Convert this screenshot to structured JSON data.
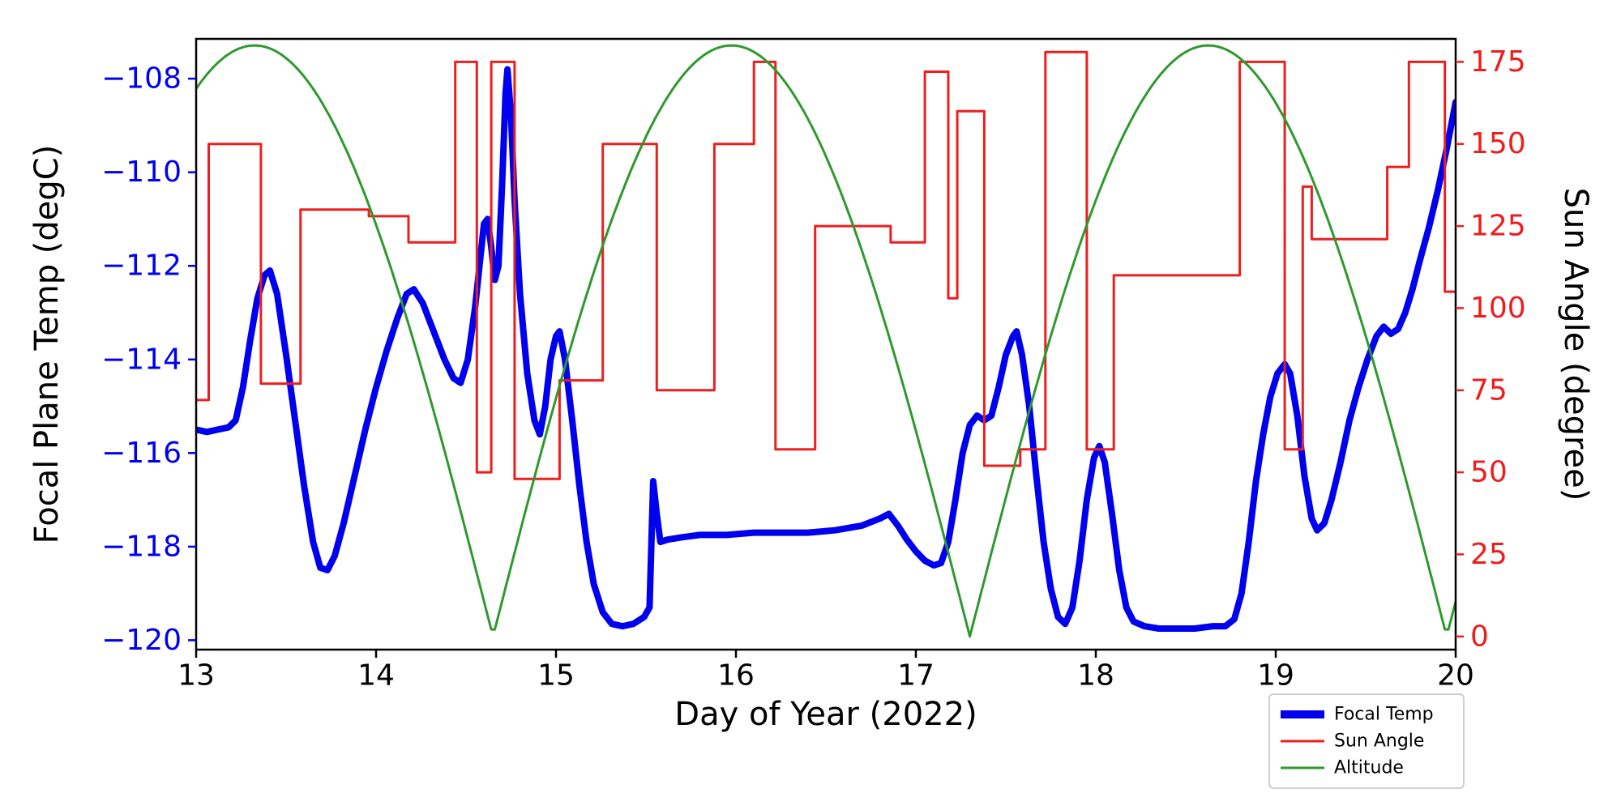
{
  "chart_data": {
    "type": "line",
    "title": "",
    "xlabel": "Day of Year (2022)",
    "x": {
      "lim": [
        13,
        20
      ],
      "ticks": [
        13,
        14,
        15,
        16,
        17,
        18,
        19,
        20
      ]
    },
    "y_left": {
      "label": "Focal Plane Temp (degC)",
      "color": "#0000ee",
      "lim": [
        -120.2,
        -107.15
      ],
      "ticks": [
        -108,
        -110,
        -112,
        -114,
        -116,
        -118,
        -120
      ]
    },
    "y_right": {
      "label": "Sun Angle (degree)",
      "color": "#ee1e1e",
      "lim": [
        -4,
        182
      ],
      "ticks": [
        0,
        25,
        50,
        75,
        100,
        125,
        150,
        175
      ]
    },
    "grid": false,
    "legend": {
      "position": "lower-right-outside",
      "entries": [
        {
          "label": "Focal Temp",
          "color": "#0000ee",
          "sample_width": 10
        },
        {
          "label": "Sun Angle",
          "color": "#ee1e1e",
          "sample_width": 3
        },
        {
          "label": "Altitude",
          "color": "#2e992e",
          "sample_width": 3
        }
      ]
    },
    "series": [
      {
        "name": "Focal Temp",
        "axis": "left",
        "color": "#0000ee",
        "width": 8,
        "style": "line",
        "points": [
          [
            13.0,
            -115.5
          ],
          [
            13.06,
            -115.55
          ],
          [
            13.12,
            -115.5
          ],
          [
            13.18,
            -115.45
          ],
          [
            13.22,
            -115.3
          ],
          [
            13.26,
            -114.6
          ],
          [
            13.3,
            -113.6
          ],
          [
            13.34,
            -112.7
          ],
          [
            13.38,
            -112.2
          ],
          [
            13.41,
            -112.1
          ],
          [
            13.45,
            -112.6
          ],
          [
            13.5,
            -113.9
          ],
          [
            13.55,
            -115.3
          ],
          [
            13.6,
            -116.7
          ],
          [
            13.65,
            -117.9
          ],
          [
            13.69,
            -118.45
          ],
          [
            13.73,
            -118.5
          ],
          [
            13.77,
            -118.2
          ],
          [
            13.82,
            -117.5
          ],
          [
            13.88,
            -116.5
          ],
          [
            13.94,
            -115.5
          ],
          [
            14.0,
            -114.6
          ],
          [
            14.06,
            -113.8
          ],
          [
            14.12,
            -113.1
          ],
          [
            14.17,
            -112.6
          ],
          [
            14.21,
            -112.5
          ],
          [
            14.26,
            -112.8
          ],
          [
            14.32,
            -113.4
          ],
          [
            14.38,
            -114.0
          ],
          [
            14.43,
            -114.4
          ],
          [
            14.47,
            -114.5
          ],
          [
            14.51,
            -114.0
          ],
          [
            14.55,
            -112.9
          ],
          [
            14.58,
            -111.8
          ],
          [
            14.6,
            -111.1
          ],
          [
            14.62,
            -111.0
          ],
          [
            14.64,
            -111.6
          ],
          [
            14.66,
            -112.3
          ],
          [
            14.68,
            -112.0
          ],
          [
            14.7,
            -110.3
          ],
          [
            14.72,
            -108.3
          ],
          [
            14.73,
            -107.8
          ],
          [
            14.75,
            -108.8
          ],
          [
            14.77,
            -110.6
          ],
          [
            14.8,
            -112.6
          ],
          [
            14.84,
            -114.3
          ],
          [
            14.88,
            -115.3
          ],
          [
            14.91,
            -115.6
          ],
          [
            14.94,
            -115.0
          ],
          [
            14.97,
            -114.0
          ],
          [
            15.0,
            -113.5
          ],
          [
            15.02,
            -113.4
          ],
          [
            15.05,
            -114.0
          ],
          [
            15.09,
            -115.3
          ],
          [
            15.13,
            -116.7
          ],
          [
            15.17,
            -117.9
          ],
          [
            15.21,
            -118.8
          ],
          [
            15.26,
            -119.4
          ],
          [
            15.31,
            -119.65
          ],
          [
            15.37,
            -119.7
          ],
          [
            15.43,
            -119.65
          ],
          [
            15.49,
            -119.5
          ],
          [
            15.52,
            -119.3
          ],
          [
            15.54,
            -116.6
          ],
          [
            15.56,
            -117.3
          ],
          [
            15.58,
            -117.9
          ],
          [
            15.62,
            -117.85
          ],
          [
            15.7,
            -117.8
          ],
          [
            15.8,
            -117.75
          ],
          [
            15.95,
            -117.75
          ],
          [
            16.1,
            -117.7
          ],
          [
            16.25,
            -117.7
          ],
          [
            16.4,
            -117.7
          ],
          [
            16.55,
            -117.65
          ],
          [
            16.7,
            -117.55
          ],
          [
            16.8,
            -117.4
          ],
          [
            16.85,
            -117.3
          ],
          [
            16.9,
            -117.55
          ],
          [
            16.95,
            -117.85
          ],
          [
            17.0,
            -118.1
          ],
          [
            17.05,
            -118.3
          ],
          [
            17.1,
            -118.4
          ],
          [
            17.14,
            -118.35
          ],
          [
            17.18,
            -117.9
          ],
          [
            17.22,
            -117.0
          ],
          [
            17.26,
            -116.0
          ],
          [
            17.3,
            -115.4
          ],
          [
            17.34,
            -115.2
          ],
          [
            17.38,
            -115.3
          ],
          [
            17.42,
            -115.2
          ],
          [
            17.46,
            -114.6
          ],
          [
            17.5,
            -113.9
          ],
          [
            17.54,
            -113.5
          ],
          [
            17.56,
            -113.4
          ],
          [
            17.59,
            -113.9
          ],
          [
            17.63,
            -115.0
          ],
          [
            17.67,
            -116.5
          ],
          [
            17.71,
            -117.9
          ],
          [
            17.75,
            -118.9
          ],
          [
            17.79,
            -119.5
          ],
          [
            17.83,
            -119.65
          ],
          [
            17.87,
            -119.3
          ],
          [
            17.91,
            -118.3
          ],
          [
            17.95,
            -117.0
          ],
          [
            17.99,
            -116.1
          ],
          [
            18.02,
            -115.85
          ],
          [
            18.05,
            -116.2
          ],
          [
            18.09,
            -117.3
          ],
          [
            18.13,
            -118.5
          ],
          [
            18.17,
            -119.3
          ],
          [
            18.21,
            -119.6
          ],
          [
            18.27,
            -119.7
          ],
          [
            18.35,
            -119.75
          ],
          [
            18.45,
            -119.75
          ],
          [
            18.55,
            -119.75
          ],
          [
            18.65,
            -119.7
          ],
          [
            18.72,
            -119.7
          ],
          [
            18.77,
            -119.55
          ],
          [
            18.81,
            -119.0
          ],
          [
            18.85,
            -117.9
          ],
          [
            18.89,
            -116.6
          ],
          [
            18.93,
            -115.6
          ],
          [
            18.97,
            -114.8
          ],
          [
            19.01,
            -114.3
          ],
          [
            19.05,
            -114.1
          ],
          [
            19.08,
            -114.3
          ],
          [
            19.12,
            -115.2
          ],
          [
            19.16,
            -116.5
          ],
          [
            19.2,
            -117.4
          ],
          [
            19.23,
            -117.65
          ],
          [
            19.27,
            -117.5
          ],
          [
            19.31,
            -117.0
          ],
          [
            19.36,
            -116.2
          ],
          [
            19.41,
            -115.3
          ],
          [
            19.46,
            -114.6
          ],
          [
            19.51,
            -114.0
          ],
          [
            19.56,
            -113.5
          ],
          [
            19.6,
            -113.3
          ],
          [
            19.64,
            -113.45
          ],
          [
            19.68,
            -113.35
          ],
          [
            19.72,
            -113.0
          ],
          [
            19.76,
            -112.5
          ],
          [
            19.8,
            -111.9
          ],
          [
            19.85,
            -111.2
          ],
          [
            19.9,
            -110.4
          ],
          [
            19.95,
            -109.5
          ],
          [
            19.99,
            -108.7
          ],
          [
            20.0,
            -108.5
          ]
        ]
      },
      {
        "name": "Sun Angle",
        "axis": "right",
        "color": "#ee1e1e",
        "width": 3,
        "style": "step",
        "points": [
          [
            13.0,
            72
          ],
          [
            13.07,
            150
          ],
          [
            13.36,
            77
          ],
          [
            13.58,
            130
          ],
          [
            13.96,
            128
          ],
          [
            14.18,
            120
          ],
          [
            14.44,
            175
          ],
          [
            14.56,
            50
          ],
          [
            14.64,
            175
          ],
          [
            14.77,
            48
          ],
          [
            15.02,
            78
          ],
          [
            15.26,
            150
          ],
          [
            15.56,
            75
          ],
          [
            15.88,
            150
          ],
          [
            16.1,
            175
          ],
          [
            16.22,
            57
          ],
          [
            16.44,
            125
          ],
          [
            16.86,
            120
          ],
          [
            17.05,
            172
          ],
          [
            17.18,
            103
          ],
          [
            17.23,
            160
          ],
          [
            17.38,
            52
          ],
          [
            17.58,
            57
          ],
          [
            17.72,
            178
          ],
          [
            17.95,
            57
          ],
          [
            18.1,
            110
          ],
          [
            18.8,
            175
          ],
          [
            19.05,
            57
          ],
          [
            19.15,
            137
          ],
          [
            19.2,
            121
          ],
          [
            19.62,
            143
          ],
          [
            19.74,
            175
          ],
          [
            19.94,
            105
          ],
          [
            20.0,
            105
          ]
        ]
      },
      {
        "name": "Altitude",
        "axis": "right",
        "color": "#2e992e",
        "width": 3,
        "style": "abs-sine",
        "params": {
          "amplitude": 180,
          "zero_at": 12.0,
          "period_days": 2.65,
          "zeros_visible": [
            14.65,
            17.3,
            19.95
          ],
          "peaks_visible": [
            13.325,
            15.975,
            18.625
          ],
          "x_start": 13,
          "x_end": 20,
          "sample_step": 0.02
        }
      }
    ],
    "frame_color": "#000000",
    "tick_color_bottom": "#000000"
  }
}
